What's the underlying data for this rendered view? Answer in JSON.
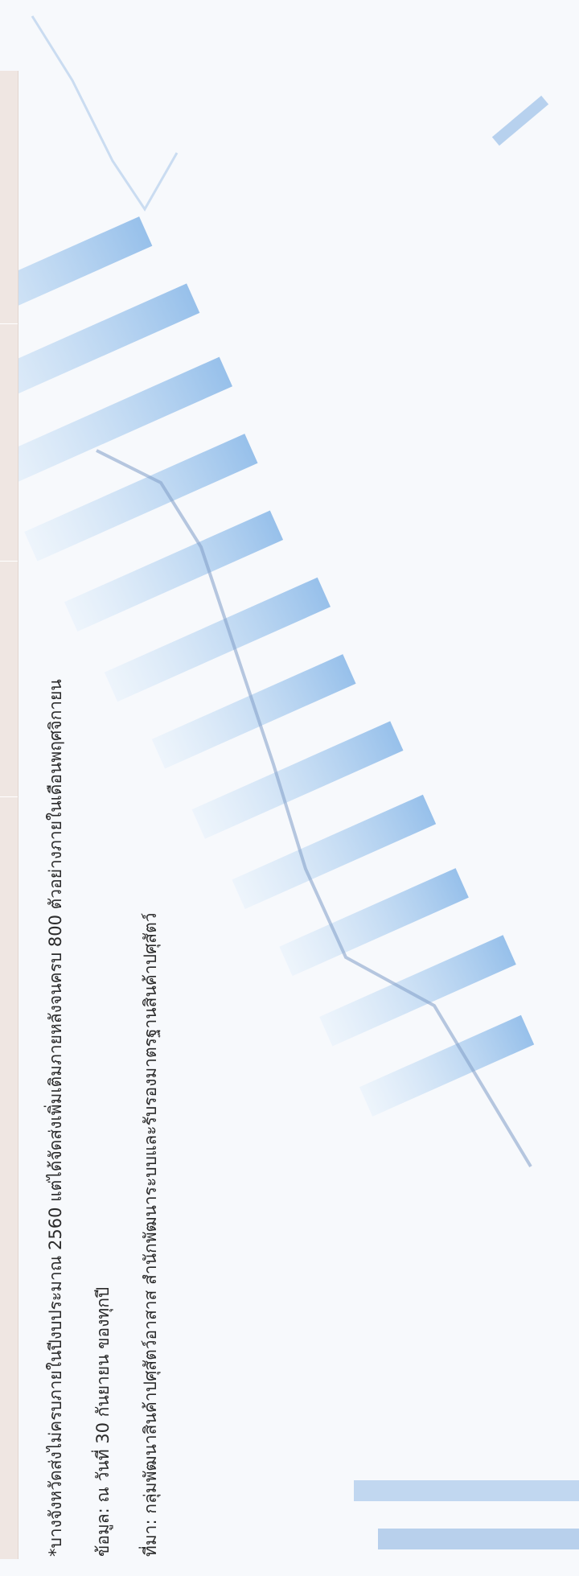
{
  "notes": {
    "footnote": "*บางจังหวัดส่งไม่ครบภายในปีงบประมาณ 2560 แต่ได้จัดส่งเพิ่มเติมภายหลังจนครบ 800 ตัวอย่างภายในเดือนพฤศจิกายน",
    "data_as_of": "ข้อมูล: ณ วันที่ 30 กันยายน ของทุกปี",
    "source": "ที่มา: กลุ่มพัฒนาสินค้าปศุสัตว์อาสาส สำนักพัฒนาระบบและรับรองมาตรฐานสินค้าปศุสัตว์"
  }
}
